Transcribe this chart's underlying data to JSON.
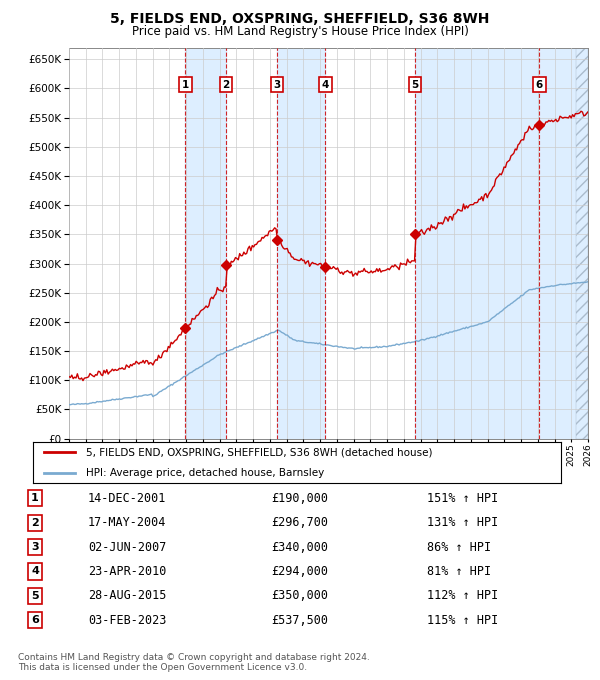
{
  "title": "5, FIELDS END, OXSPRING, SHEFFIELD, S36 8WH",
  "subtitle": "Price paid vs. HM Land Registry's House Price Index (HPI)",
  "hpi_color": "#7aaad0",
  "property_color": "#cc0000",
  "shade_color": "#ddeeff",
  "ylim": [
    0,
    670000
  ],
  "yticks": [
    0,
    50000,
    100000,
    150000,
    200000,
    250000,
    300000,
    350000,
    400000,
    450000,
    500000,
    550000,
    600000,
    650000
  ],
  "xlim_start": 1995,
  "xlim_end": 2026,
  "sales": [
    {
      "num": 1,
      "date": "14-DEC-2001",
      "year": 2001.958,
      "price": 190000,
      "hpi_pct": "151%"
    },
    {
      "num": 2,
      "date": "17-MAY-2004",
      "year": 2004.375,
      "price": 296700,
      "hpi_pct": "131%"
    },
    {
      "num": 3,
      "date": "02-JUN-2007",
      "year": 2007.417,
      "price": 340000,
      "hpi_pct": "86%"
    },
    {
      "num": 4,
      "date": "23-APR-2010",
      "year": 2010.308,
      "price": 294000,
      "hpi_pct": "81%"
    },
    {
      "num": 5,
      "date": "28-AUG-2015",
      "year": 2015.656,
      "price": 350000,
      "hpi_pct": "112%"
    },
    {
      "num": 6,
      "date": "03-FEB-2023",
      "year": 2023.092,
      "price": 537500,
      "hpi_pct": "115%"
    }
  ],
  "legend_label_property": "5, FIELDS END, OXSPRING, SHEFFIELD, S36 8WH (detached house)",
  "legend_label_hpi": "HPI: Average price, detached house, Barnsley",
  "footer": "Contains HM Land Registry data © Crown copyright and database right 2024.\nThis data is licensed under the Open Government Licence v3.0."
}
